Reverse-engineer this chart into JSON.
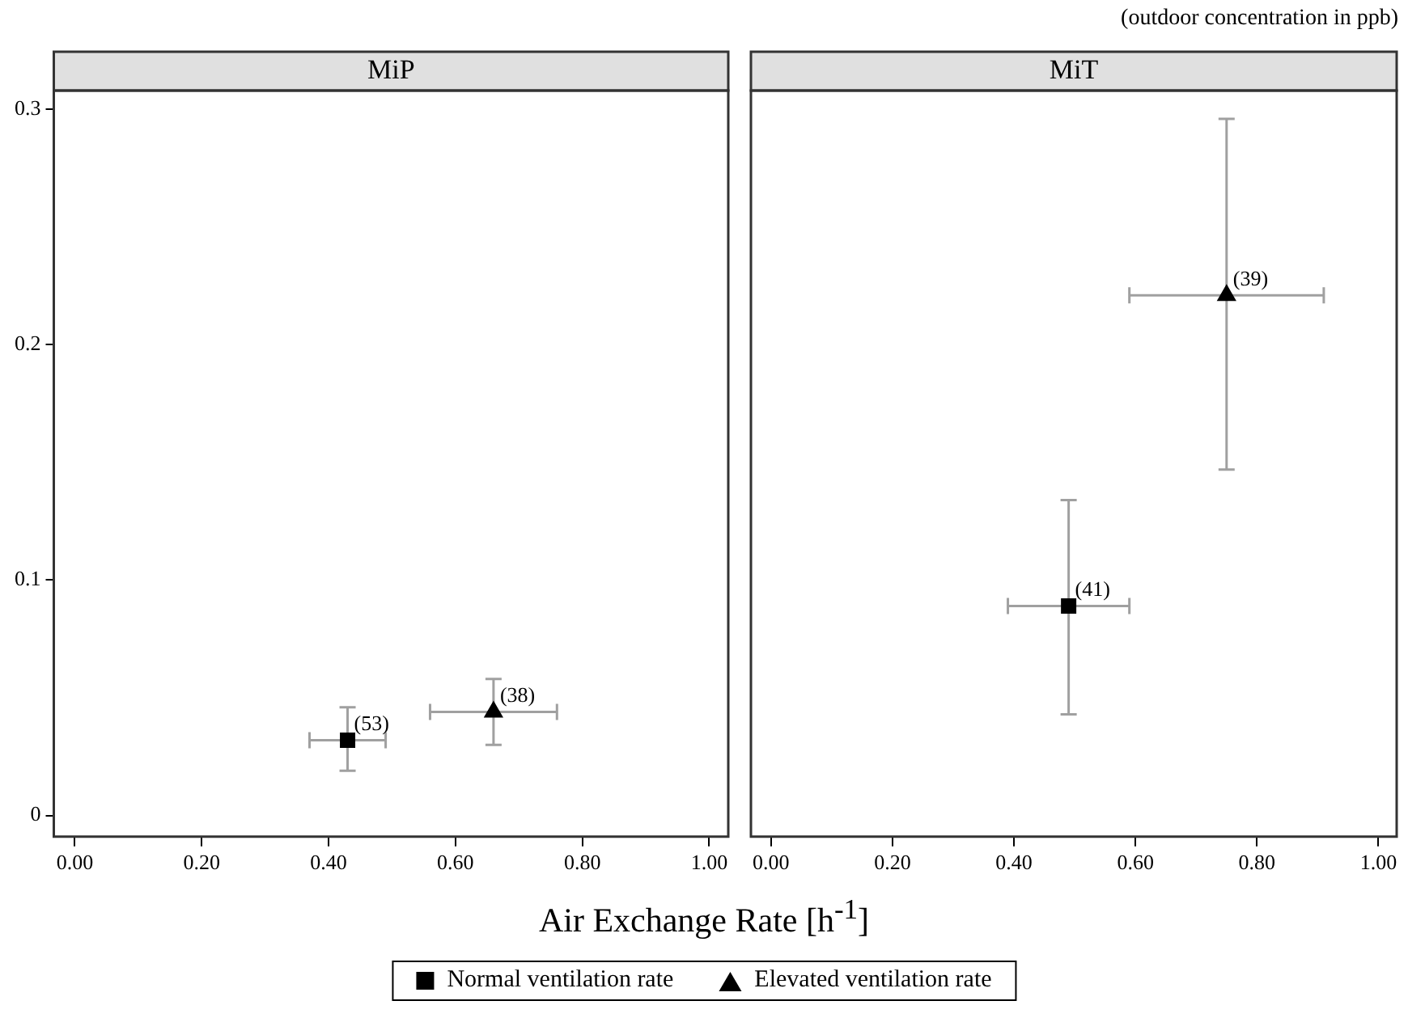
{
  "chart_data": [
    {
      "type": "scatter",
      "title": "MiP",
      "xlabel": "Air Exchange Rate [h$^{-1}$]",
      "legend": "bottom",
      "grid": false,
      "xlim": [
        -0.033,
        1.03
      ],
      "xticks": [
        {
          "value": 0,
          "label": "0.00"
        },
        {
          "value": 0.2,
          "label": "0.20"
        },
        {
          "value": 0.4,
          "label": "0.40"
        },
        {
          "value": 0.6,
          "label": "0.60"
        },
        {
          "value": 0.8,
          "label": "0.80"
        },
        {
          "value": 1,
          "label": "1.00"
        }
      ],
      "ylim": [
        -0.009,
        0.308
      ],
      "yticks": [
        0,
        0.1,
        0.2,
        0.3
      ],
      "series": [
        {
          "name": "Normal ventilation rate",
          "color": "#000000",
          "marker": "square",
          "x": [
            0.43
          ],
          "values": [
            0.032
          ],
          "errors": [
            [
              0.019,
              0.046
            ]
          ],
          "xerrors": [
            [
              0.37,
              0.49
            ]
          ]
        },
        {
          "name": "Elevated ventilation rate",
          "color": "#000000",
          "marker": "triangle",
          "x": [
            0.66
          ],
          "values": [
            0.044
          ],
          "errors": [
            [
              0.03,
              0.058
            ]
          ],
          "xerrors": [
            [
              0.56,
              0.76
            ]
          ]
        }
      ],
      "annotations": [
        {
          "text": "(53)",
          "x": 0.43,
          "y": 0.032
        },
        {
          "text": "(38)",
          "x": 0.66,
          "y": 0.044
        }
      ]
    },
    {
      "type": "scatter",
      "title": "MiT",
      "grid": false,
      "tick_labels": "x",
      "xlim": [
        -0.033,
        1.03
      ],
      "xticks": [
        {
          "value": 0,
          "label": "0.00"
        },
        {
          "value": 0.2,
          "label": "0.20"
        },
        {
          "value": 0.4,
          "label": "0.40"
        },
        {
          "value": 0.6,
          "label": "0.60"
        },
        {
          "value": 0.8,
          "label": "0.80"
        },
        {
          "value": 1,
          "label": "1.00"
        }
      ],
      "ylim": [
        -0.009,
        0.308
      ],
      "series": [
        {
          "color": "#000000",
          "marker": "square",
          "x": [
            0.49
          ],
          "values": [
            0.089
          ],
          "errors": [
            [
              0.043,
              0.134
            ]
          ],
          "xerrors": [
            [
              0.39,
              0.59
            ]
          ]
        },
        {
          "color": "#000000",
          "marker": "triangle",
          "x": [
            0.75
          ],
          "values": [
            0.221
          ],
          "errors": [
            [
              0.147,
              0.296
            ]
          ],
          "xerrors": [
            [
              0.59,
              0.91
            ]
          ]
        }
      ],
      "annotations": [
        "(outdoor concentration in ppb)",
        {
          "text": "(41)",
          "x": 0.49,
          "y": 0.089
        },
        {
          "text": "(39)",
          "x": 0.75,
          "y": 0.221
        }
      ]
    }
  ]
}
